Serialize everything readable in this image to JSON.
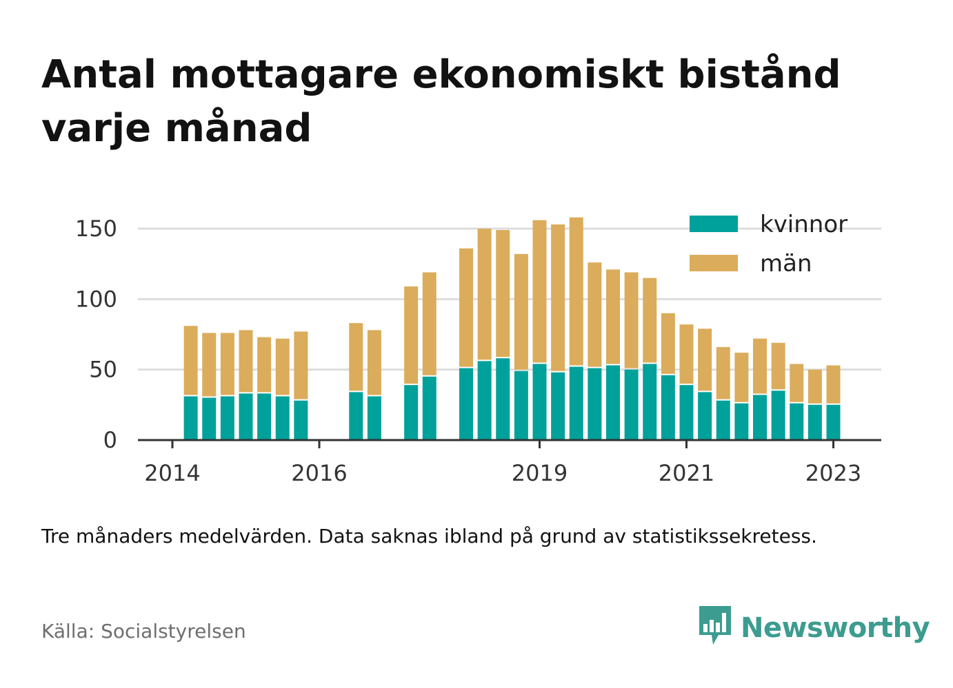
{
  "title": "Antal mottagare ekonomiskt bistånd varje månad",
  "note": "Tre månaders medelvärden. Data saknas ibland på grund av statistikssekretess.",
  "source": "Källa: Socialstyrelsen",
  "brand": {
    "name": "Newsworthy",
    "icon": "newsworthy-logo-icon"
  },
  "colors": {
    "kvinnor": "#00a19a",
    "man": "#dbac5b",
    "grid": "#dddddd",
    "axis": "#333333",
    "brand": "#3c9c90"
  },
  "chart_data": {
    "type": "bar",
    "stacked": true,
    "title": "Antal mottagare ekonomiskt bistånd varje månad",
    "xlabel": "",
    "ylabel": "",
    "ylim": [
      0,
      150
    ],
    "yticks": [
      0,
      50,
      100,
      150
    ],
    "grid": true,
    "legend_position": "top-right",
    "x_tick_labels": [
      "2014",
      "2016",
      "2019",
      "2021",
      "2023"
    ],
    "x_ticks": [
      2014.0,
      2016.0,
      2019.0,
      2021.0,
      2023.0
    ],
    "x": [
      2014.25,
      2014.5,
      2014.75,
      2015.0,
      2015.25,
      2015.5,
      2015.75,
      2016.5,
      2016.75,
      2017.25,
      2017.5,
      2018.0,
      2018.25,
      2018.5,
      2018.75,
      2019.0,
      2019.25,
      2019.5,
      2019.75,
      2020.0,
      2020.25,
      2020.5,
      2020.75,
      2021.0,
      2021.25,
      2021.5,
      2021.75,
      2022.0,
      2022.25,
      2022.5,
      2022.75,
      2023.0
    ],
    "series": [
      {
        "name": "kvinnor",
        "values": [
          32,
          31,
          32,
          34,
          34,
          32,
          29,
          35,
          32,
          40,
          46,
          52,
          57,
          59,
          50,
          55,
          49,
          53,
          52,
          54,
          51,
          55,
          47,
          40,
          35,
          29,
          27,
          33,
          36,
          27,
          26,
          26
        ]
      },
      {
        "name": "män",
        "values": [
          49,
          45,
          44,
          44,
          39,
          40,
          48,
          48,
          46,
          69,
          73,
          84,
          93,
          90,
          82,
          101,
          104,
          105,
          74,
          67,
          68,
          60,
          43,
          42,
          44,
          37,
          35,
          39,
          33,
          27,
          24,
          27
        ]
      }
    ]
  }
}
